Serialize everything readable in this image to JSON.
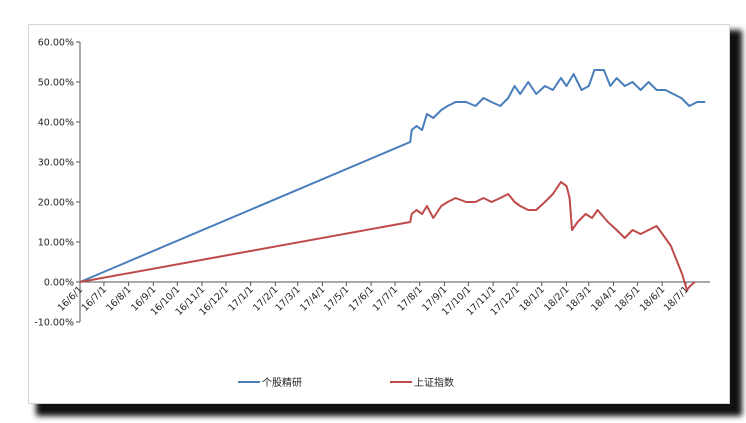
{
  "chart_data": {
    "type": "line",
    "title": "",
    "xlabel": "",
    "ylabel": "",
    "ylim": [
      -0.1,
      0.6
    ],
    "y_ticks": [
      "60.00%",
      "50.00%",
      "40.00%",
      "30.00%",
      "20.00%",
      "10.00%",
      "0.00%",
      "-10.00%"
    ],
    "y_tick_values": [
      0.6,
      0.5,
      0.4,
      0.3,
      0.2,
      0.1,
      0.0,
      -0.1
    ],
    "x_ticks": [
      "16/6/1",
      "16/7/1",
      "16/8/1",
      "16/9/1",
      "16/10/1",
      "16/11/1",
      "16/12/1",
      "17/1/1",
      "17/2/1",
      "17/3/1",
      "17/4/1",
      "17/5/1",
      "17/6/1",
      "17/7/1",
      "17/8/1",
      "17/9/1",
      "17/10/1",
      "17/11/1",
      "17/12/1",
      "18/1/1",
      "18/2/1",
      "18/3/1",
      "18/4/1",
      "18/5/1",
      "18/6/1",
      "18/7/1"
    ],
    "x_range": [
      "16/6/1",
      "18/7/31"
    ],
    "gridlines": false,
    "legend_position": "bottom",
    "series": [
      {
        "name": "个股精研",
        "color": "#4a7ebb",
        "points": [
          [
            "16/6/1",
            0.0
          ],
          [
            "17/7/20",
            0.35
          ],
          [
            "17/7/22",
            0.38
          ],
          [
            "17/7/28",
            0.39
          ],
          [
            "17/8/4",
            0.38
          ],
          [
            "17/8/10",
            0.42
          ],
          [
            "17/8/18",
            0.41
          ],
          [
            "17/8/28",
            0.43
          ],
          [
            "17/9/5",
            0.44
          ],
          [
            "17/9/15",
            0.45
          ],
          [
            "17/9/28",
            0.45
          ],
          [
            "17/10/10",
            0.44
          ],
          [
            "17/10/20",
            0.46
          ],
          [
            "17/10/30",
            0.45
          ],
          [
            "17/11/10",
            0.44
          ],
          [
            "17/11/20",
            0.46
          ],
          [
            "17/11/28",
            0.49
          ],
          [
            "17/12/5",
            0.47
          ],
          [
            "17/12/15",
            0.5
          ],
          [
            "17/12/25",
            0.47
          ],
          [
            "18/1/5",
            0.49
          ],
          [
            "18/1/15",
            0.48
          ],
          [
            "18/1/25",
            0.51
          ],
          [
            "18/2/1",
            0.49
          ],
          [
            "18/2/10",
            0.52
          ],
          [
            "18/2/20",
            0.48
          ],
          [
            "18/3/1",
            0.49
          ],
          [
            "18/3/8",
            0.53
          ],
          [
            "18/3/20",
            0.53
          ],
          [
            "18/3/28",
            0.49
          ],
          [
            "18/4/5",
            0.51
          ],
          [
            "18/4/15",
            0.49
          ],
          [
            "18/4/25",
            0.5
          ],
          [
            "18/5/5",
            0.48
          ],
          [
            "18/5/15",
            0.5
          ],
          [
            "18/5/25",
            0.48
          ],
          [
            "18/6/5",
            0.48
          ],
          [
            "18/6/15",
            0.47
          ],
          [
            "18/6/25",
            0.46
          ],
          [
            "18/7/5",
            0.44
          ],
          [
            "18/7/15",
            0.45
          ],
          [
            "18/7/25",
            0.45
          ]
        ]
      },
      {
        "name": "上证指数",
        "color": "#be4b48",
        "points": [
          [
            "16/6/1",
            0.0
          ],
          [
            "17/7/20",
            0.15
          ],
          [
            "17/7/22",
            0.17
          ],
          [
            "17/7/28",
            0.18
          ],
          [
            "17/8/4",
            0.17
          ],
          [
            "17/8/10",
            0.19
          ],
          [
            "17/8/18",
            0.16
          ],
          [
            "17/8/28",
            0.19
          ],
          [
            "17/9/5",
            0.2
          ],
          [
            "17/9/15",
            0.21
          ],
          [
            "17/9/28",
            0.2
          ],
          [
            "17/10/10",
            0.2
          ],
          [
            "17/10/20",
            0.21
          ],
          [
            "17/10/30",
            0.2
          ],
          [
            "17/11/10",
            0.21
          ],
          [
            "17/11/20",
            0.22
          ],
          [
            "17/11/28",
            0.2
          ],
          [
            "17/12/5",
            0.19
          ],
          [
            "17/12/15",
            0.18
          ],
          [
            "17/12/25",
            0.18
          ],
          [
            "18/1/5",
            0.2
          ],
          [
            "18/1/15",
            0.22
          ],
          [
            "18/1/25",
            0.25
          ],
          [
            "18/2/1",
            0.24
          ],
          [
            "18/2/5",
            0.21
          ],
          [
            "18/2/8",
            0.13
          ],
          [
            "18/2/15",
            0.15
          ],
          [
            "18/2/25",
            0.17
          ],
          [
            "18/3/5",
            0.16
          ],
          [
            "18/3/12",
            0.18
          ],
          [
            "18/3/25",
            0.15
          ],
          [
            "18/4/5",
            0.13
          ],
          [
            "18/4/15",
            0.11
          ],
          [
            "18/4/25",
            0.13
          ],
          [
            "18/5/5",
            0.12
          ],
          [
            "18/5/15",
            0.13
          ],
          [
            "18/5/25",
            0.14
          ],
          [
            "18/6/5",
            0.11
          ],
          [
            "18/6/12",
            0.09
          ],
          [
            "18/6/20",
            0.05
          ],
          [
            "18/6/26",
            0.02
          ],
          [
            "18/7/2",
            -0.02
          ],
          [
            "18/7/6",
            -0.01
          ],
          [
            "18/7/12",
            0.0
          ]
        ]
      }
    ]
  }
}
